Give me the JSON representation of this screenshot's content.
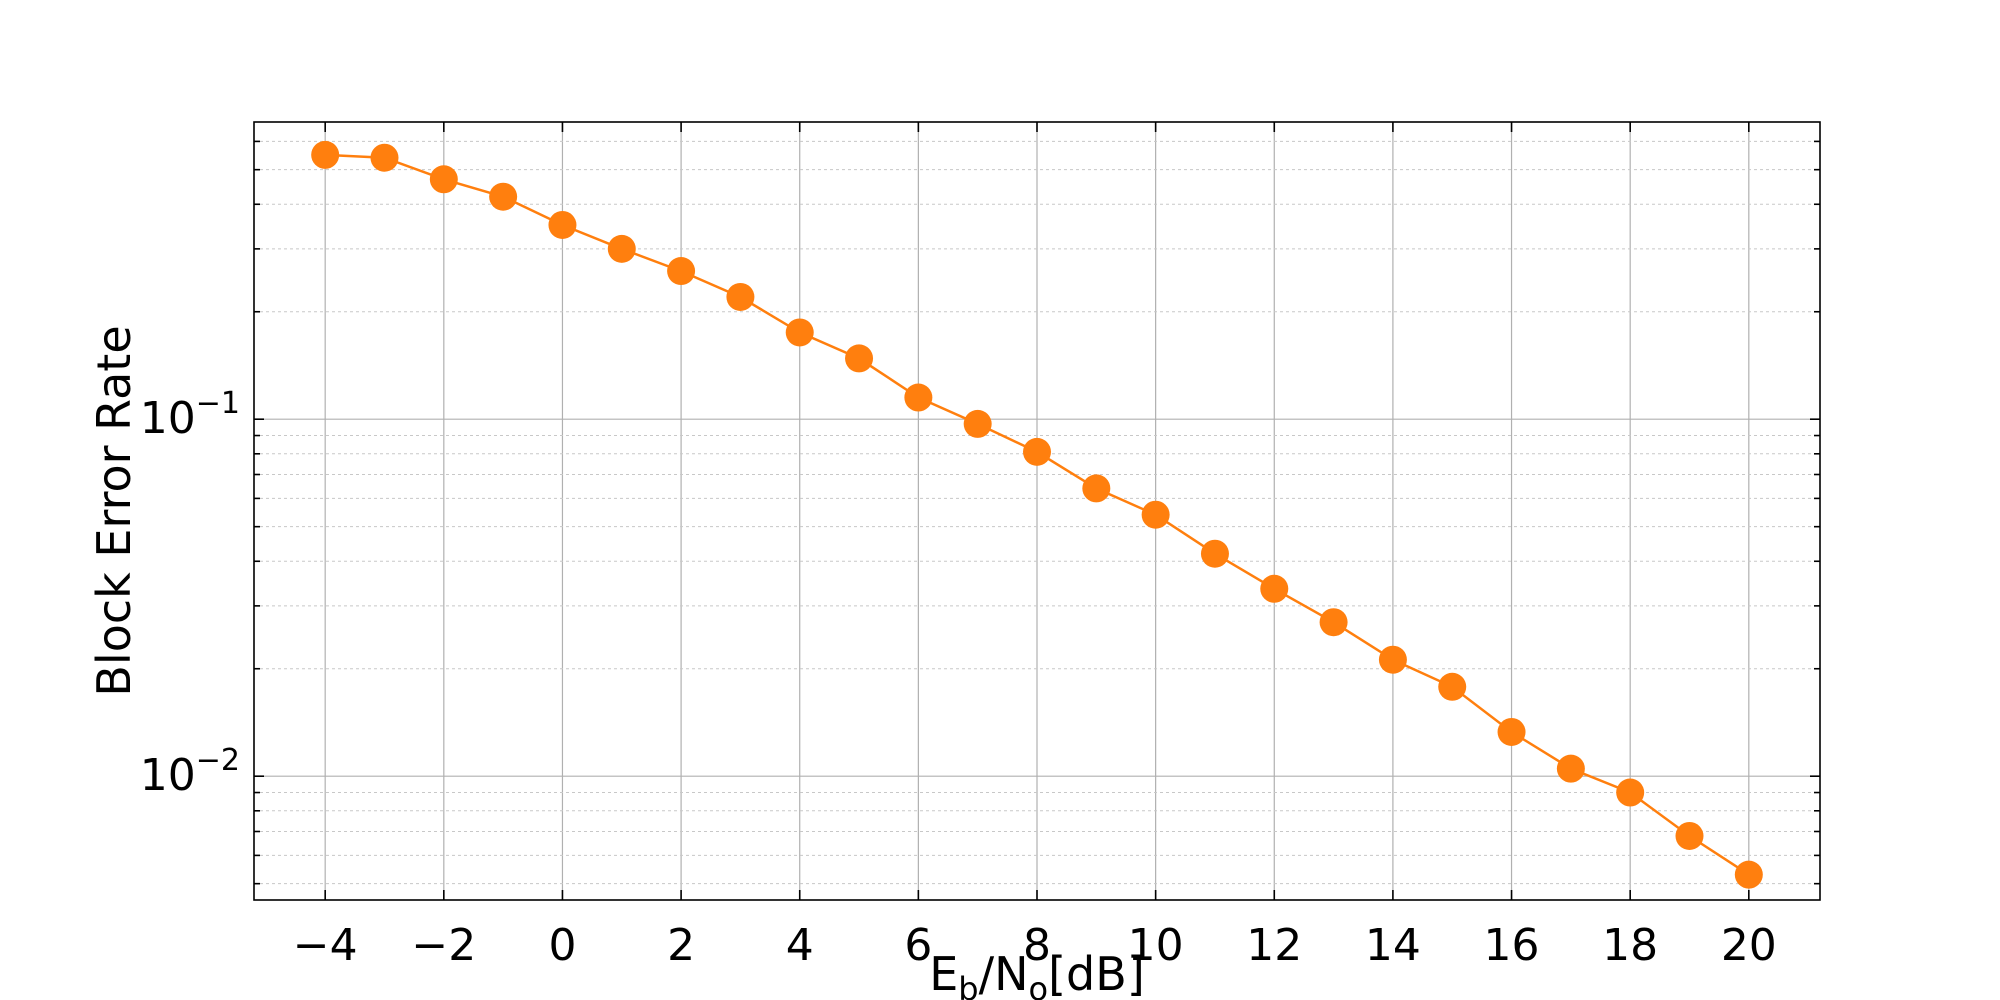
{
  "chart_data": {
    "type": "line",
    "title": "",
    "xlabel": {
      "main": "E",
      "sub1": "b",
      "mid": "/N",
      "sub2": "o",
      "tail": "[dB]"
    },
    "ylabel": "Block Error Rate",
    "x": [
      -4,
      -3,
      -2,
      -1,
      0,
      1,
      2,
      3,
      4,
      5,
      6,
      7,
      8,
      9,
      10,
      11,
      12,
      13,
      14,
      15,
      16,
      17,
      18,
      19,
      20
    ],
    "xlim": [
      -5.2,
      21.2
    ],
    "x_ticks": [
      -4,
      -2,
      0,
      2,
      4,
      6,
      8,
      10,
      12,
      14,
      16,
      18,
      20
    ],
    "y_scale": "log",
    "ylim": [
      0.0045,
      0.68
    ],
    "y_tick_labels": [
      {
        "value": 0.1,
        "base": "10",
        "exp": "−1"
      },
      {
        "value": 0.01,
        "base": "10",
        "exp": "−2"
      }
    ],
    "grid": "major and minor",
    "series": [
      {
        "color": "#ff7f0e",
        "marker": "circle",
        "values": [
          0.55,
          0.54,
          0.47,
          0.42,
          0.35,
          0.3,
          0.26,
          0.22,
          0.175,
          0.148,
          0.115,
          0.097,
          0.081,
          0.064,
          0.054,
          0.042,
          0.0335,
          0.027,
          0.0212,
          0.0178,
          0.0133,
          0.0105,
          0.009,
          0.0068,
          0.0053
        ]
      }
    ]
  }
}
